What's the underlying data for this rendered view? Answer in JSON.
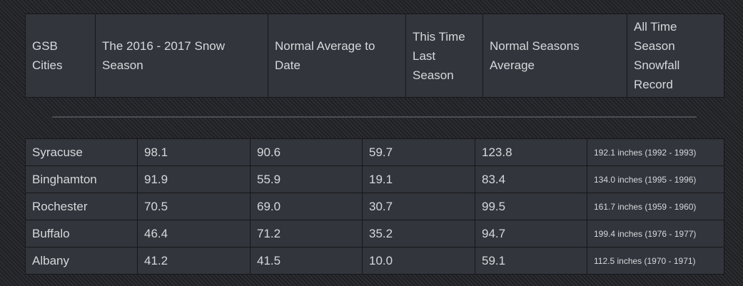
{
  "header": {
    "columns": [
      "GSB Cities",
      "The 2016 - 2017 Snow Season",
      "Normal Average to Date",
      "This Time Last Season",
      "Normal Seasons Average",
      "All Time Season Snowfall Record"
    ]
  },
  "rows": [
    {
      "city": "Syracuse",
      "season": "98.1",
      "normal_to_date": "90.6",
      "last_season": "59.7",
      "season_avg": "123.8",
      "record": "192.1 inches (1992 - 1993)"
    },
    {
      "city": "Binghamton",
      "season": "91.9",
      "normal_to_date": "55.9",
      "last_season": "19.1",
      "season_avg": "83.4",
      "record": "134.0 inches (1995 - 1996)"
    },
    {
      "city": "Rochester",
      "season": "70.5",
      "normal_to_date": "69.0",
      "last_season": "30.7",
      "season_avg": "99.5",
      "record": "161.7 inches (1959 - 1960)"
    },
    {
      "city": "Buffalo",
      "season": "46.4",
      "normal_to_date": "71.2",
      "last_season": "35.2",
      "season_avg": "94.7",
      "record": "199.4 inches (1976 - 1977)"
    },
    {
      "city": "Albany",
      "season": "41.2",
      "normal_to_date": "41.5",
      "last_season": "10.0",
      "season_avg": "59.1",
      "record": "112.5 inches (1970 - 1971)"
    }
  ]
}
